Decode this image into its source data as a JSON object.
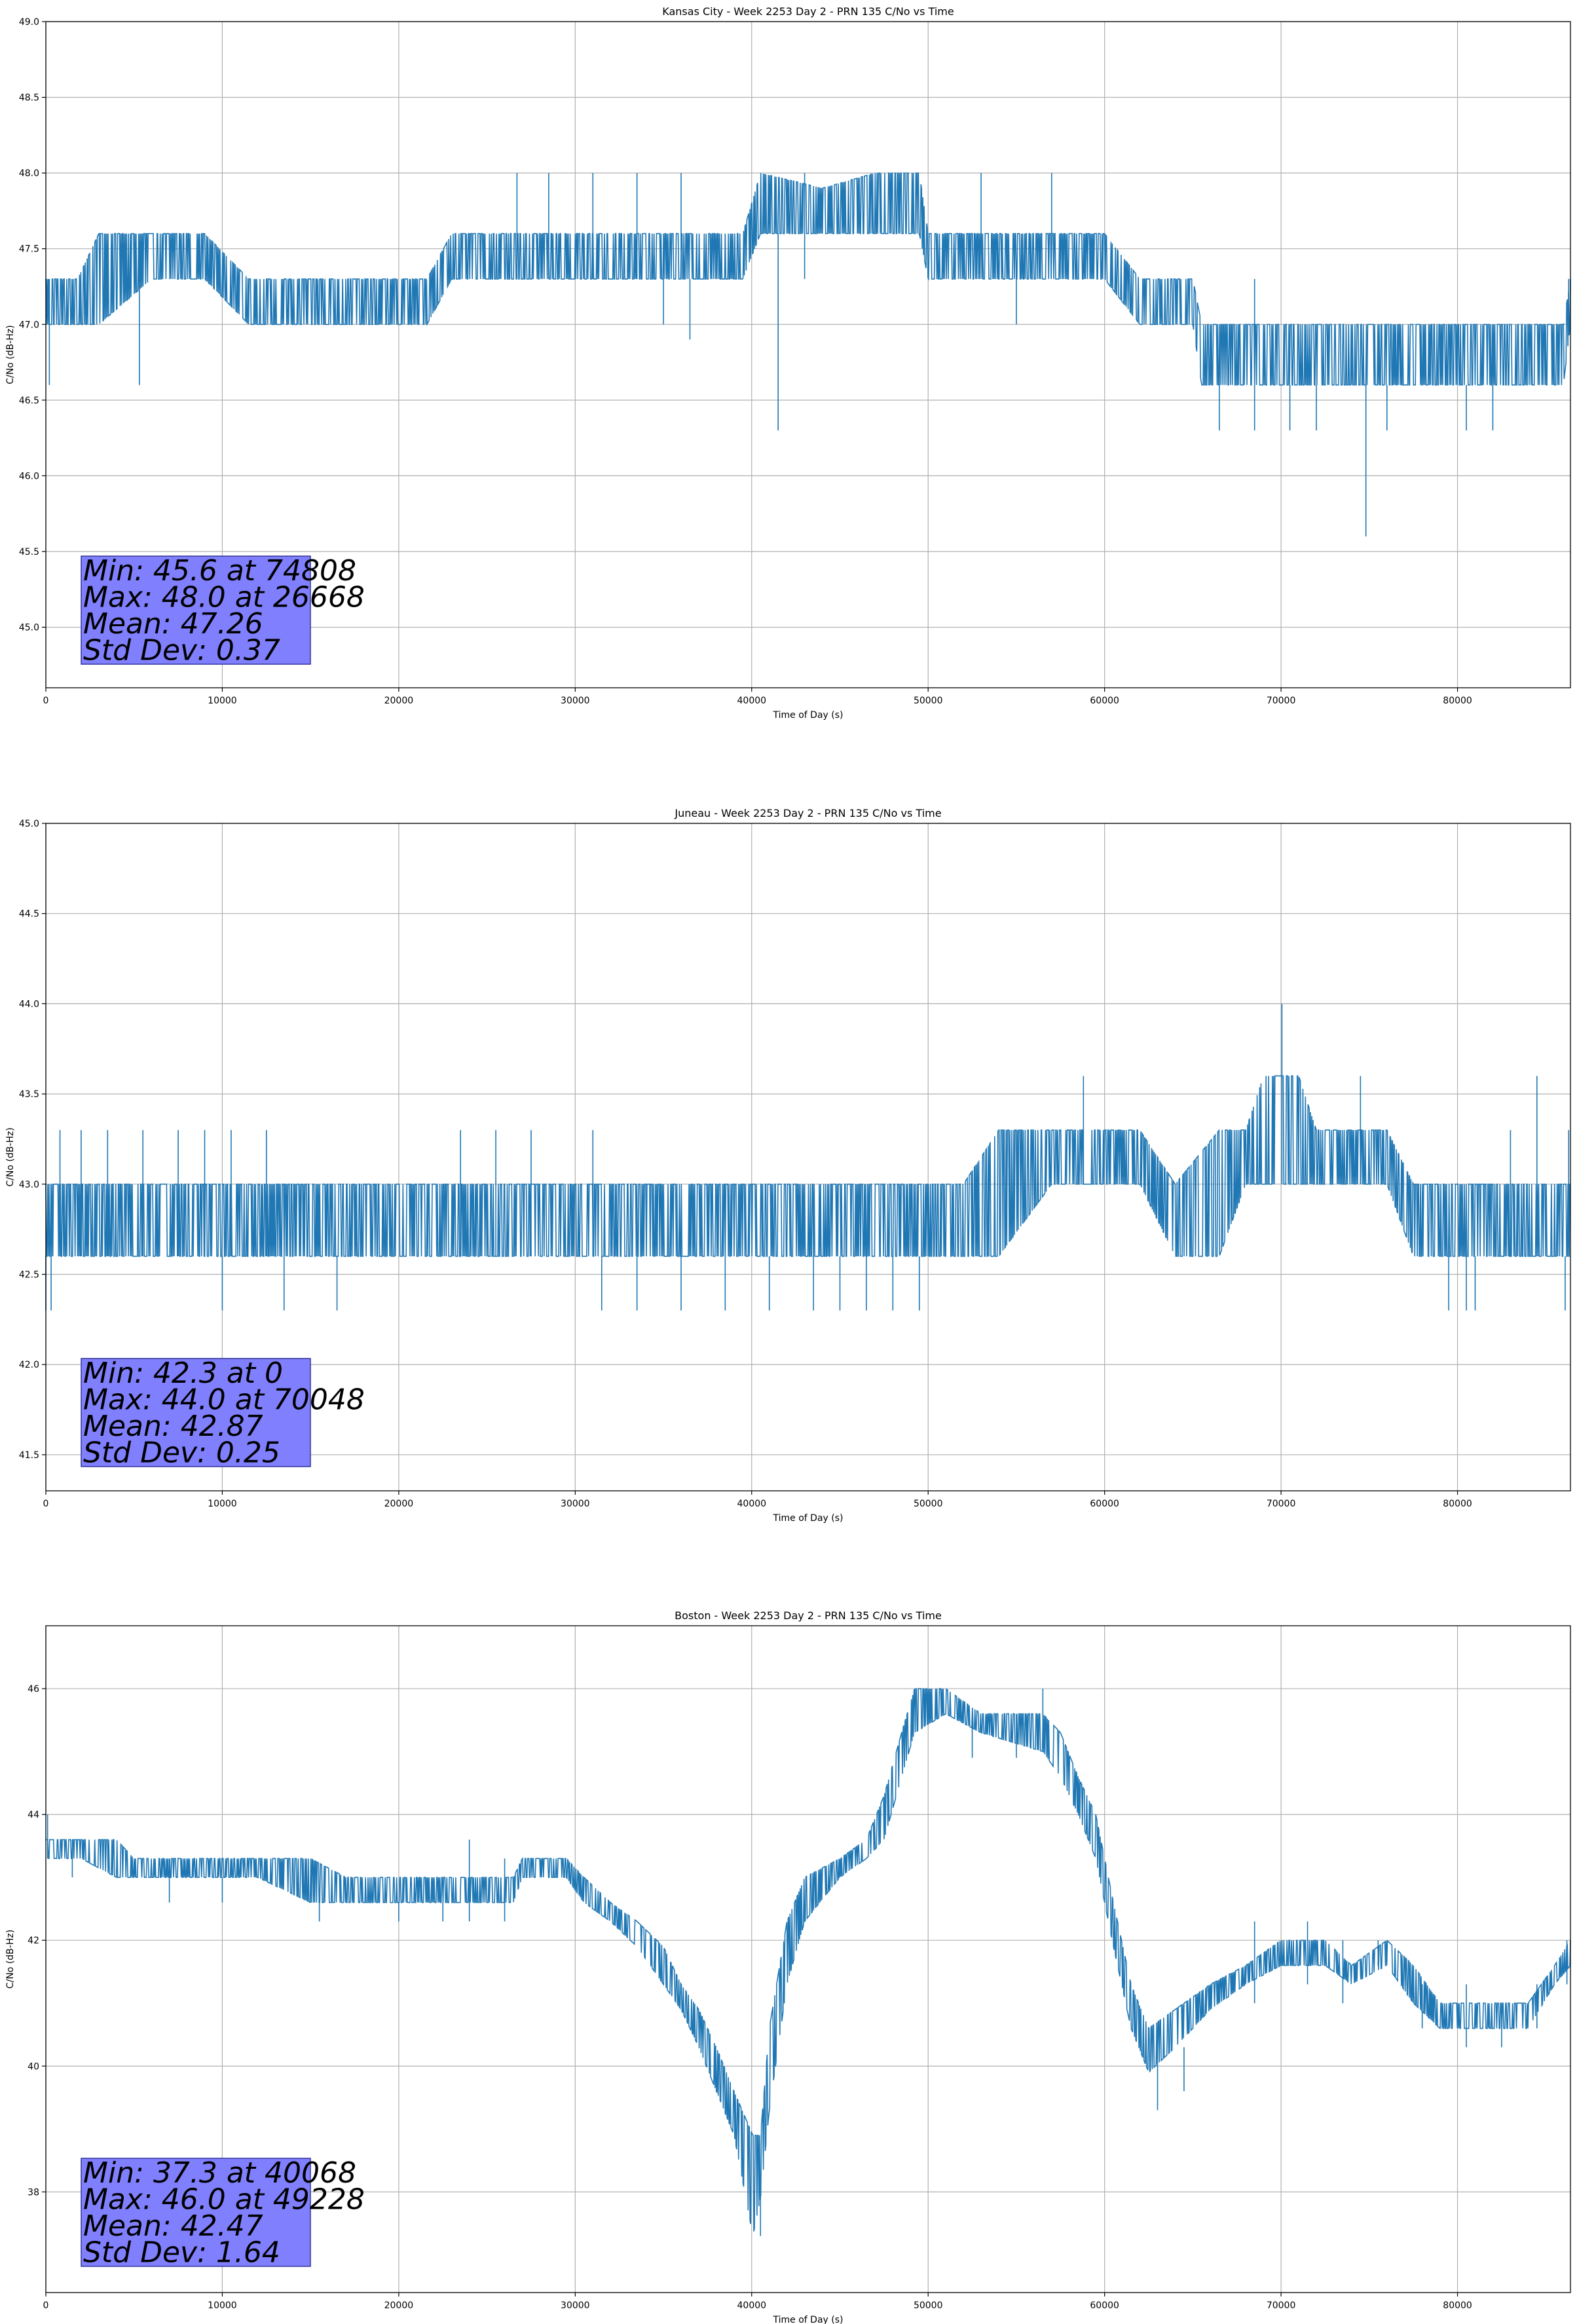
{
  "colors": {
    "line": "#1f77b4",
    "grid": "#b0b0b0",
    "stats_box": "#8080ff",
    "stats_edge": "#333399"
  },
  "chart_data": [
    {
      "type": "line",
      "title": "Kansas City - Week 2253 Day 2 - PRN 135 C/No vs Time",
      "xlabel": "Time of Day (s)",
      "ylabel": "C/No (dB-Hz)",
      "xlim": [
        0,
        86400
      ],
      "ylim": [
        44.6,
        49.0
      ],
      "xticks": [
        0,
        10000,
        20000,
        30000,
        40000,
        50000,
        60000,
        70000,
        80000
      ],
      "xtick_labels": [
        "0",
        "10000",
        "20000",
        "30000",
        "40000",
        "50000",
        "60000",
        "70000",
        "80000"
      ],
      "yticks": [
        45.0,
        45.5,
        46.0,
        46.5,
        47.0,
        47.5,
        48.0,
        48.5,
        49.0
      ],
      "ytick_labels": [
        "45.0",
        "45.5",
        "46.0",
        "46.5",
        "47.0",
        "47.5",
        "48.0",
        "48.5",
        "49.0"
      ],
      "grid": true,
      "stats": [
        "Min: 45.6 at 74808",
        "Max: 48.0 at 26668",
        "Mean: 47.26",
        "Std Dev: 0.37"
      ],
      "band": [
        [
          0,
          47.0,
          47.3
        ],
        [
          1800,
          47.0,
          47.3
        ],
        [
          3000,
          47.0,
          47.6
        ],
        [
          6000,
          47.3,
          47.6
        ],
        [
          9000,
          47.3,
          47.6
        ],
        [
          11500,
          47.0,
          47.3
        ],
        [
          15000,
          47.0,
          47.3
        ],
        [
          18000,
          47.0,
          47.3
        ],
        [
          21600,
          47.0,
          47.3
        ],
        [
          23000,
          47.3,
          47.6
        ],
        [
          26000,
          47.3,
          47.6
        ],
        [
          30000,
          47.3,
          47.6
        ],
        [
          35000,
          47.3,
          47.6
        ],
        [
          39500,
          47.3,
          47.6
        ],
        [
          40500,
          47.6,
          48.0
        ],
        [
          44000,
          47.6,
          47.9
        ],
        [
          47000,
          47.6,
          48.0
        ],
        [
          49500,
          47.6,
          48.0
        ],
        [
          50000,
          47.3,
          47.6
        ],
        [
          55000,
          47.3,
          47.6
        ],
        [
          60000,
          47.3,
          47.6
        ],
        [
          62000,
          47.0,
          47.3
        ],
        [
          65000,
          47.0,
          47.3
        ],
        [
          65500,
          46.6,
          47.0
        ],
        [
          72000,
          46.6,
          47.0
        ],
        [
          80000,
          46.6,
          47.0
        ],
        [
          86000,
          46.6,
          47.0
        ],
        [
          86400,
          47.0,
          47.3
        ]
      ],
      "spikes": [
        [
          200,
          46.6,
          47.3
        ],
        [
          5300,
          46.6,
          47.3
        ],
        [
          26700,
          47.3,
          48.0
        ],
        [
          28500,
          47.3,
          48.0
        ],
        [
          31000,
          47.3,
          48.0
        ],
        [
          33500,
          47.3,
          48.0
        ],
        [
          36000,
          47.3,
          48.0
        ],
        [
          35000,
          47.0,
          47.3
        ],
        [
          36500,
          46.9,
          47.3
        ],
        [
          41500,
          46.3,
          47.6
        ],
        [
          43000,
          47.3,
          48.0
        ],
        [
          53000,
          47.6,
          48.0
        ],
        [
          55000,
          47.0,
          47.3
        ],
        [
          57000,
          47.6,
          48.0
        ],
        [
          66500,
          46.3,
          46.6
        ],
        [
          68500,
          46.3,
          47.3
        ],
        [
          70500,
          46.3,
          46.6
        ],
        [
          72000,
          46.3,
          46.6
        ],
        [
          74808,
          45.6,
          46.6
        ],
        [
          76000,
          46.3,
          46.6
        ],
        [
          80500,
          46.3,
          46.6
        ],
        [
          82000,
          46.3,
          46.6
        ],
        [
          86300,
          47.0,
          47.3
        ]
      ]
    },
    {
      "type": "line",
      "title": "Juneau - Week 2253 Day 2 - PRN 135 C/No vs Time",
      "xlabel": "Time of Day (s)",
      "ylabel": "C/No (dB-Hz)",
      "xlim": [
        0,
        86400
      ],
      "ylim": [
        41.3,
        45.0
      ],
      "xticks": [
        0,
        10000,
        20000,
        30000,
        40000,
        50000,
        60000,
        70000,
        80000
      ],
      "xtick_labels": [
        "0",
        "10000",
        "20000",
        "30000",
        "40000",
        "50000",
        "60000",
        "70000",
        "80000"
      ],
      "yticks": [
        41.5,
        42.0,
        42.5,
        43.0,
        43.5,
        44.0,
        44.5,
        45.0
      ],
      "ytick_labels": [
        "41.5",
        "42.0",
        "42.5",
        "43.0",
        "43.5",
        "44.0",
        "44.5",
        "45.0"
      ],
      "grid": true,
      "stats": [
        "Min: 42.3 at 0",
        "Max: 44.0 at 70048",
        "Mean: 42.87",
        "Std Dev: 0.25"
      ],
      "band": [
        [
          0,
          42.6,
          43.0
        ],
        [
          10000,
          42.6,
          43.0
        ],
        [
          20000,
          42.6,
          43.0
        ],
        [
          30000,
          42.6,
          43.0
        ],
        [
          40000,
          42.6,
          43.0
        ],
        [
          50000,
          42.6,
          43.0
        ],
        [
          52000,
          42.6,
          43.0
        ],
        [
          54000,
          42.6,
          43.3
        ],
        [
          57000,
          43.0,
          43.3
        ],
        [
          62000,
          43.0,
          43.3
        ],
        [
          64000,
          42.6,
          43.0
        ],
        [
          66500,
          42.6,
          43.3
        ],
        [
          68000,
          43.0,
          43.3
        ],
        [
          69000,
          43.0,
          43.6
        ],
        [
          71000,
          43.0,
          43.6
        ],
        [
          72000,
          43.0,
          43.3
        ],
        [
          76000,
          43.0,
          43.3
        ],
        [
          77500,
          42.6,
          43.0
        ],
        [
          80000,
          42.6,
          43.0
        ],
        [
          84000,
          42.6,
          43.0
        ],
        [
          86400,
          42.6,
          43.0
        ]
      ],
      "spikes": [
        [
          0,
          42.3,
          42.6
        ],
        [
          300,
          42.3,
          42.6
        ],
        [
          800,
          42.6,
          43.3
        ],
        [
          2000,
          42.6,
          43.3
        ],
        [
          3500,
          42.6,
          43.3
        ],
        [
          5500,
          42.6,
          43.3
        ],
        [
          7500,
          42.6,
          43.3
        ],
        [
          9000,
          42.6,
          43.3
        ],
        [
          10500,
          42.6,
          43.3
        ],
        [
          12500,
          42.6,
          43.3
        ],
        [
          10000,
          42.3,
          42.6
        ],
        [
          13500,
          42.3,
          42.6
        ],
        [
          16500,
          42.3,
          42.6
        ],
        [
          23500,
          42.6,
          43.3
        ],
        [
          25500,
          42.6,
          43.3
        ],
        [
          27500,
          42.6,
          43.3
        ],
        [
          31000,
          42.6,
          43.3
        ],
        [
          31500,
          42.3,
          42.6
        ],
        [
          33500,
          42.3,
          42.6
        ],
        [
          36000,
          42.3,
          42.6
        ],
        [
          38500,
          42.3,
          42.6
        ],
        [
          41000,
          42.3,
          42.6
        ],
        [
          43500,
          42.3,
          42.6
        ],
        [
          45000,
          42.3,
          42.6
        ],
        [
          46500,
          42.3,
          42.6
        ],
        [
          48000,
          42.3,
          42.6
        ],
        [
          49500,
          42.3,
          42.6
        ],
        [
          58800,
          43.0,
          43.6
        ],
        [
          70048,
          43.0,
          44.0
        ],
        [
          74500,
          43.0,
          43.6
        ],
        [
          79500,
          42.3,
          42.6
        ],
        [
          80500,
          42.3,
          42.6
        ],
        [
          81000,
          42.3,
          42.6
        ],
        [
          83000,
          42.6,
          43.3
        ],
        [
          84500,
          43.0,
          43.6
        ],
        [
          86100,
          42.3,
          42.6
        ],
        [
          86300,
          42.6,
          43.3
        ]
      ]
    },
    {
      "type": "line",
      "title": "Boston - Week 2253 Day 2 - PRN 135 C/No vs Time",
      "xlabel": "Time of Day (s)",
      "ylabel": "C/No (dB-Hz)",
      "xlim": [
        0,
        86400
      ],
      "ylim": [
        36.4,
        47.0
      ],
      "xticks": [
        0,
        10000,
        20000,
        30000,
        40000,
        50000,
        60000,
        70000,
        80000
      ],
      "xtick_labels": [
        "0",
        "10000",
        "20000",
        "30000",
        "40000",
        "50000",
        "60000",
        "70000",
        "80000"
      ],
      "yticks": [
        38,
        40,
        42,
        44,
        46
      ],
      "ytick_labels": [
        "38",
        "40",
        "42",
        "44",
        "46"
      ],
      "grid": true,
      "stats": [
        "Min: 37.3 at 40068",
        "Max: 46.0 at 49228",
        "Mean: 42.47",
        "Std Dev: 1.64"
      ],
      "band": [
        [
          0,
          43.3,
          43.6
        ],
        [
          2000,
          43.3,
          43.6
        ],
        [
          4000,
          43.0,
          43.6
        ],
        [
          5000,
          43.0,
          43.3
        ],
        [
          8000,
          43.0,
          43.3
        ],
        [
          12000,
          43.0,
          43.3
        ],
        [
          15000,
          42.6,
          43.3
        ],
        [
          17000,
          42.6,
          43.0
        ],
        [
          20000,
          42.6,
          43.0
        ],
        [
          23000,
          42.6,
          43.0
        ],
        [
          26500,
          42.6,
          43.0
        ],
        [
          27000,
          43.0,
          43.3
        ],
        [
          29500,
          43.0,
          43.3
        ],
        [
          30500,
          42.6,
          43.0
        ],
        [
          32000,
          42.3,
          42.6
        ],
        [
          33500,
          41.9,
          42.3
        ],
        [
          35000,
          41.3,
          41.9
        ],
        [
          36000,
          40.9,
          41.3
        ],
        [
          37000,
          40.3,
          40.9
        ],
        [
          38000,
          39.6,
          40.3
        ],
        [
          39000,
          38.9,
          39.6
        ],
        [
          40068,
          37.3,
          38.9
        ],
        [
          40500,
          37.9,
          38.9
        ],
        [
          41000,
          39.3,
          40.6
        ],
        [
          42000,
          41.3,
          42.3
        ],
        [
          43000,
          42.3,
          43.0
        ],
        [
          45000,
          43.0,
          43.3
        ],
        [
          46500,
          43.3,
          43.6
        ],
        [
          47500,
          43.6,
          44.3
        ],
        [
          48500,
          44.6,
          45.3
        ],
        [
          49228,
          45.3,
          46.0
        ],
        [
          51000,
          45.6,
          46.0
        ],
        [
          53000,
          45.3,
          45.6
        ],
        [
          56500,
          45.0,
          45.6
        ],
        [
          57500,
          44.6,
          45.3
        ],
        [
          58500,
          44.0,
          44.6
        ],
        [
          59500,
          43.3,
          44.0
        ],
        [
          60500,
          41.9,
          42.6
        ],
        [
          61500,
          40.6,
          41.3
        ],
        [
          62500,
          39.9,
          40.6
        ],
        [
          64000,
          40.3,
          40.9
        ],
        [
          66000,
          40.9,
          41.3
        ],
        [
          68000,
          41.3,
          41.6
        ],
        [
          70000,
          41.6,
          42.0
        ],
        [
          72500,
          41.6,
          42.0
        ],
        [
          74000,
          41.3,
          41.6
        ],
        [
          76000,
          41.6,
          42.0
        ],
        [
          77500,
          41.0,
          41.6
        ],
        [
          79000,
          40.6,
          41.0
        ],
        [
          84000,
          40.6,
          41.0
        ],
        [
          85500,
          41.3,
          41.6
        ],
        [
          86400,
          41.6,
          42.0
        ]
      ],
      "spikes": [
        [
          100,
          43.3,
          44.0
        ],
        [
          1500,
          43.0,
          43.6
        ],
        [
          7000,
          42.6,
          43.3
        ],
        [
          10000,
          42.6,
          43.0
        ],
        [
          15500,
          42.3,
          42.6
        ],
        [
          20000,
          42.3,
          42.6
        ],
        [
          22500,
          42.3,
          42.6
        ],
        [
          24000,
          42.3,
          43.6
        ],
        [
          26000,
          42.3,
          43.3
        ],
        [
          40500,
          37.3,
          38.3
        ],
        [
          52500,
          44.9,
          45.6
        ],
        [
          55000,
          44.9,
          45.6
        ],
        [
          56500,
          45.3,
          46.0
        ],
        [
          63000,
          39.3,
          40.3
        ],
        [
          64500,
          39.6,
          40.3
        ],
        [
          68500,
          41.0,
          42.3
        ],
        [
          71500,
          41.3,
          42.3
        ],
        [
          73500,
          41.0,
          42.0
        ],
        [
          75500,
          41.6,
          42.0
        ],
        [
          78000,
          40.6,
          41.3
        ],
        [
          80500,
          40.3,
          41.3
        ],
        [
          82500,
          40.3,
          40.9
        ],
        [
          84500,
          40.6,
          41.3
        ],
        [
          86200,
          41.3,
          42.0
        ]
      ]
    }
  ]
}
